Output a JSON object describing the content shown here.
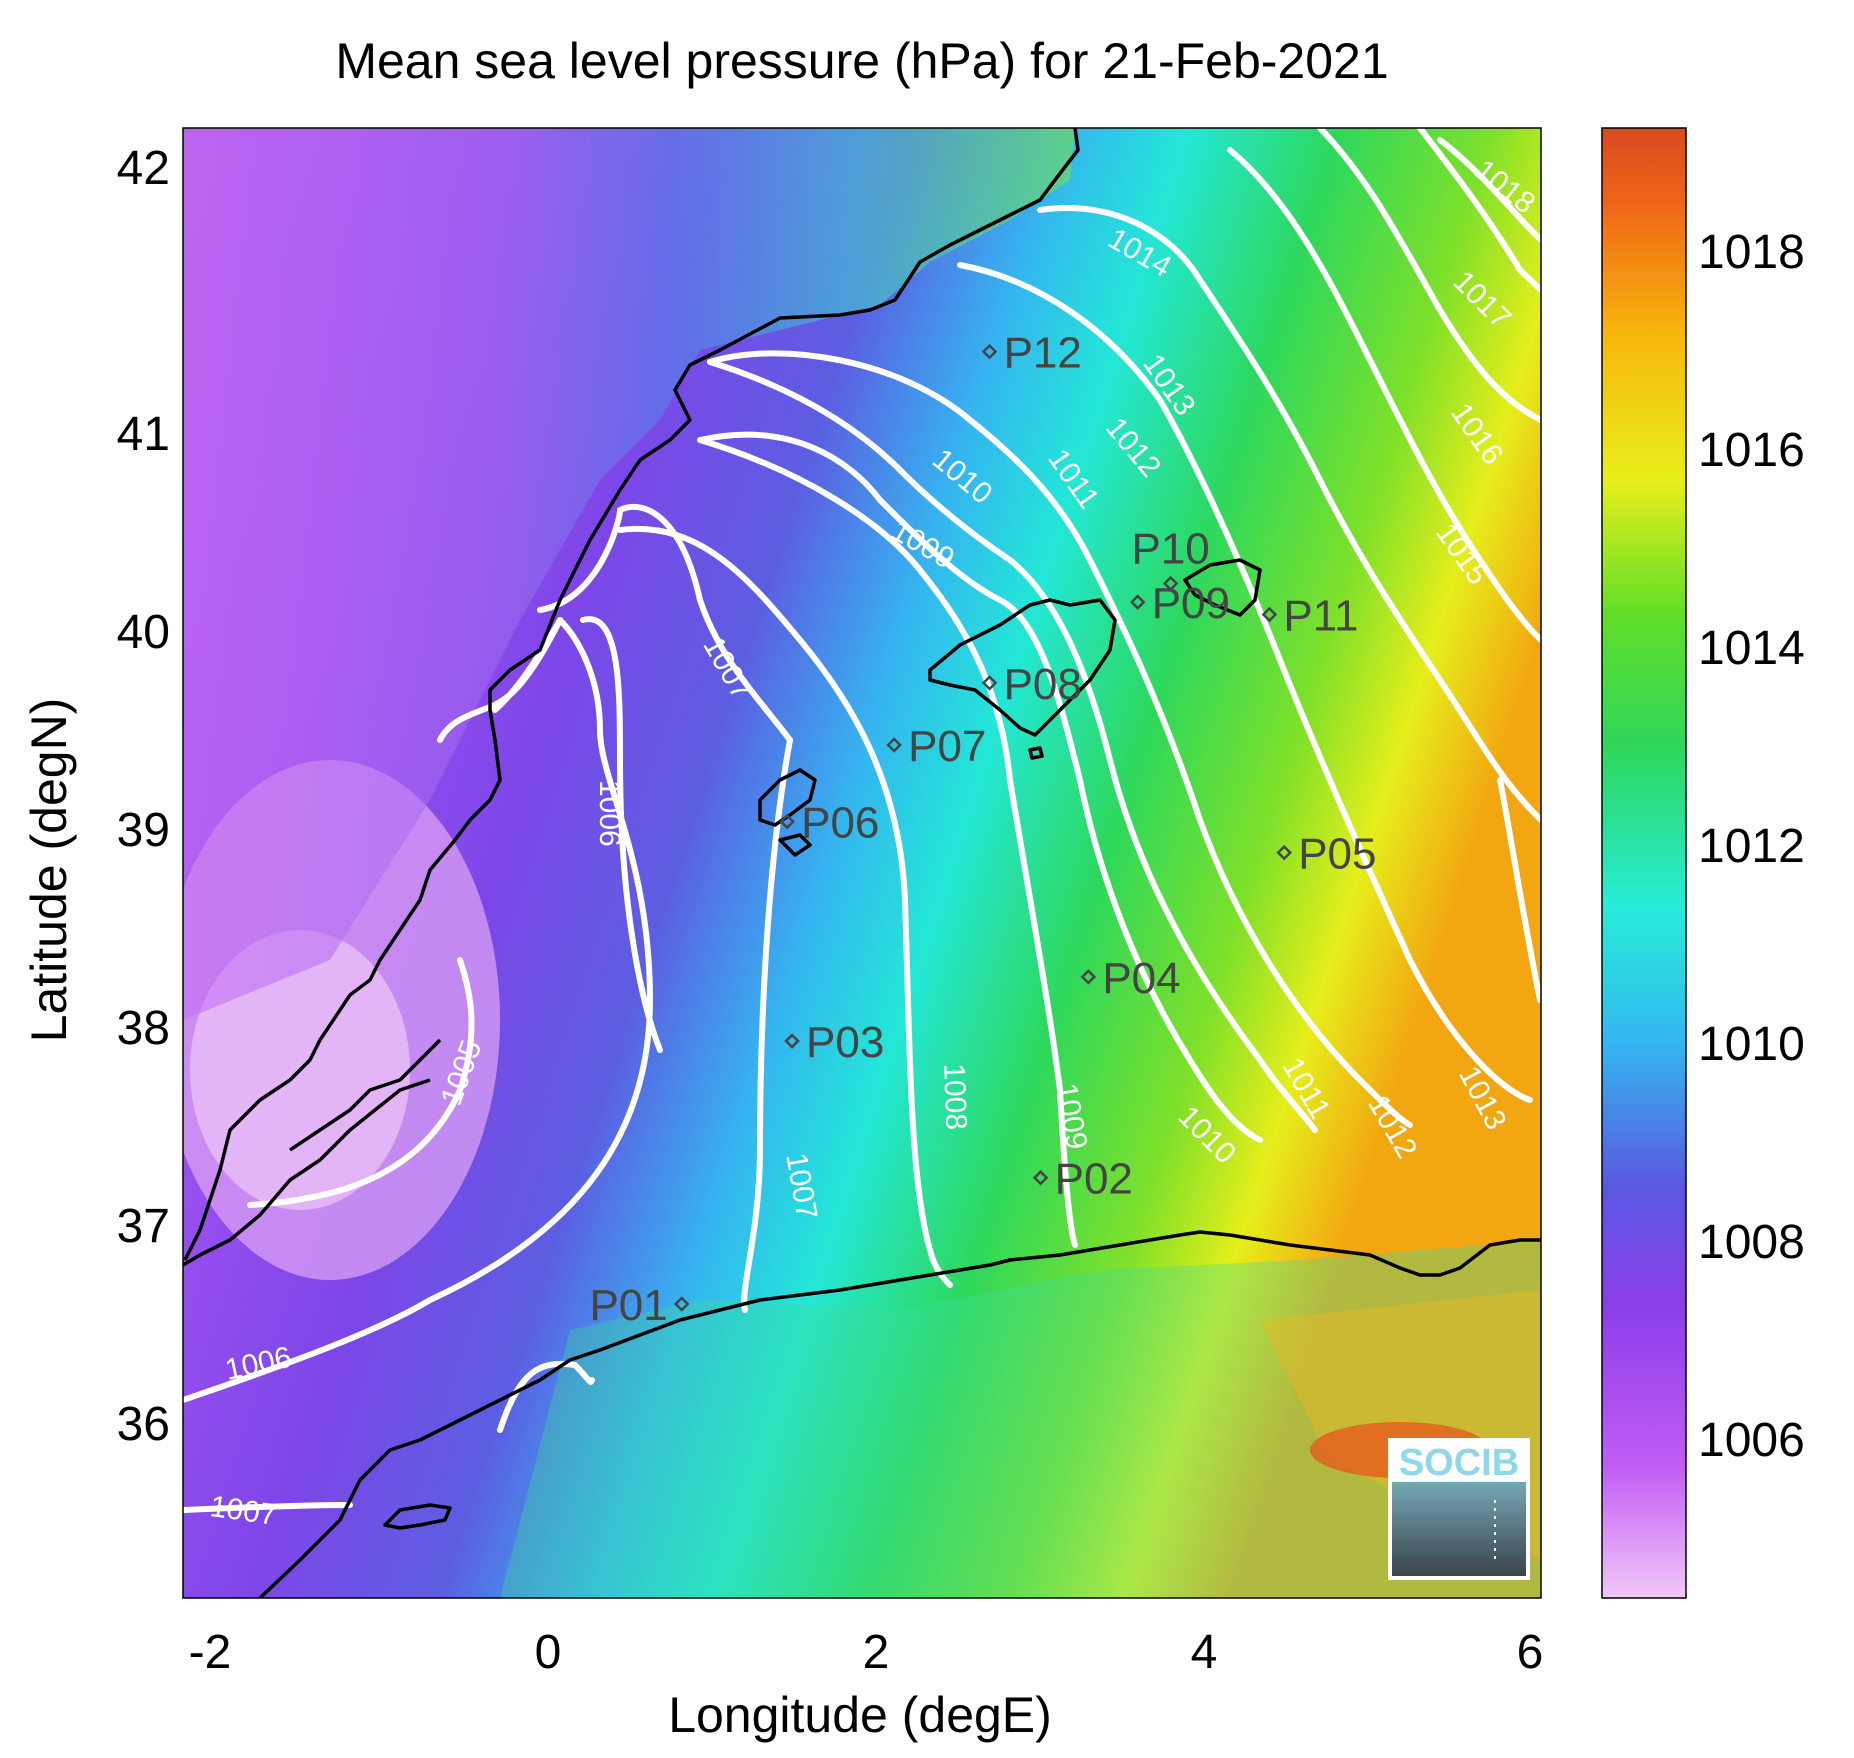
{
  "chart_data": {
    "type": "heatmap",
    "title": "Mean sea level pressure (hPa) for 21-Feb-2021",
    "xlabel": "Longitude (degE)",
    "ylabel": "Latitude (degN)",
    "xlim": [
      -2.2,
      6.05
    ],
    "ylim": [
      35.1,
      42.2
    ],
    "x_ticks": [
      "-2",
      "0",
      "2",
      "4",
      "6"
    ],
    "y_ticks": [
      "36",
      "37",
      "38",
      "39",
      "40",
      "41",
      "42"
    ],
    "colorbar": {
      "range": [
        1004.3,
        1019.3
      ],
      "ticks": [
        "1006",
        "1008",
        "1010",
        "1012",
        "1014",
        "1016",
        "1018"
      ],
      "colors": [
        "#f0c8f8",
        "#c15cf4",
        "#8a3ee8",
        "#5a58e0",
        "#33b8f0",
        "#27ecd8",
        "#2fd65a",
        "#62de28",
        "#e8ef1a",
        "#f7b60c",
        "#ef6418",
        "#d84a20"
      ]
    },
    "contour_labels": [
      "1005",
      "1006",
      "1006",
      "1007",
      "1007",
      "1007",
      "1007",
      "1008",
      "1008",
      "1009",
      "1009",
      "1009",
      "1010",
      "1010",
      "1010",
      "1011",
      "1011",
      "1012",
      "1012",
      "1013",
      "1013",
      "1014",
      "1014",
      "1015",
      "1016",
      "1017",
      "1018"
    ],
    "stations": [
      {
        "name": "P01",
        "lon": 0.83,
        "lat": 36.52
      },
      {
        "name": "P02",
        "lon": 3.01,
        "lat": 37.13
      },
      {
        "name": "P03",
        "lon": 1.5,
        "lat": 37.79
      },
      {
        "name": "P04",
        "lon": 3.3,
        "lat": 38.1
      },
      {
        "name": "P05",
        "lon": 4.49,
        "lat": 38.7
      },
      {
        "name": "P06",
        "lon": 1.47,
        "lat": 38.85
      },
      {
        "name": "P07",
        "lon": 2.12,
        "lat": 39.22
      },
      {
        "name": "P08",
        "lon": 2.7,
        "lat": 39.52
      },
      {
        "name": "P09",
        "lon": 3.6,
        "lat": 39.91
      },
      {
        "name": "P10",
        "lon": 3.8,
        "lat": 40.0
      },
      {
        "name": "P11",
        "lon": 4.4,
        "lat": 39.85
      },
      {
        "name": "P12",
        "lon": 2.7,
        "lat": 41.12
      }
    ],
    "logo": "SOCIB"
  }
}
